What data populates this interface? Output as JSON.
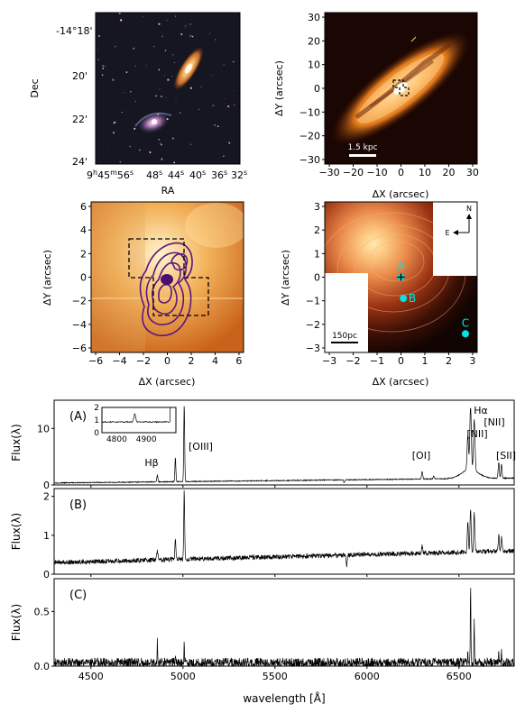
{
  "panel_sky": {
    "dec_label": "Dec",
    "ra_label": "RA",
    "dec_ticks": [
      "-14°18'",
      "20'",
      "22'",
      "24'"
    ],
    "ra_ticks": [
      {
        "h": "9",
        "m": "45",
        "s": "56"
      },
      {
        "s": "48"
      },
      {
        "s": "44"
      },
      {
        "s": "40"
      },
      {
        "s": "36"
      },
      {
        "s": "32"
      }
    ]
  },
  "panel_zoom1": {
    "xlabel": "ΔX (arcsec)",
    "ylabel": "ΔY (arcsec)",
    "xticks": [
      "−30",
      "−20",
      "−10",
      "0",
      "10",
      "20",
      "30"
    ],
    "yticks": [
      "30",
      "20",
      "10",
      "0",
      "−10",
      "−20",
      "−30"
    ],
    "scalebar": "1.5 kpc"
  },
  "panel_zoom2": {
    "xlabel": "ΔX (arcsec)",
    "ylabel": "ΔY (arcsec)",
    "xticks": [
      "−6",
      "−4",
      "−2",
      "0",
      "2",
      "4",
      "6"
    ],
    "yticks": [
      "6",
      "4",
      "2",
      "0",
      "−2",
      "−4",
      "−6"
    ]
  },
  "panel_map": {
    "xlabel": "ΔX (arcsec)",
    "ylabel": "ΔY (arcsec)",
    "xticks": [
      "−3",
      "−2",
      "−1",
      "0",
      "1",
      "2",
      "3"
    ],
    "yticks": [
      "3",
      "2",
      "1",
      "0",
      "−1",
      "−2",
      "−3"
    ],
    "scalebar": "150pc",
    "compass_n": "N",
    "compass_e": "E",
    "points": [
      {
        "label": "A",
        "x": 0.0,
        "y": 0.0
      },
      {
        "label": "B",
        "x": 0.1,
        "y": -0.9
      },
      {
        "label": "C",
        "x": 2.7,
        "y": -2.4
      }
    ],
    "accent": "#00e5e5"
  },
  "spectra": {
    "xlabel": "wavelength  [Å]",
    "ylabel": "Flux(λ)",
    "xticks": [
      "4500",
      "5000",
      "5500",
      "6000",
      "6500"
    ],
    "xlim": [
      4300,
      6800
    ],
    "panels": [
      {
        "tag": "(A)",
        "ylim": [
          0,
          15
        ],
        "yticks": [
          "0",
          "10"
        ],
        "lines": [
          "Hβ",
          "[OIII]",
          "[OI]",
          "[NII]",
          "Hα",
          "[NII]",
          "[SII]"
        ],
        "inset": {
          "xticks": [
            "4800",
            "4900"
          ],
          "yticks": [
            "0",
            "1",
            "2"
          ]
        }
      },
      {
        "tag": "(B)",
        "ylim": [
          0,
          2.2
        ],
        "yticks": [
          "0",
          "1",
          "2"
        ]
      },
      {
        "tag": "(C)",
        "ylim": [
          0,
          0.8
        ],
        "yticks": [
          "0.0",
          "0.5"
        ]
      }
    ]
  }
}
